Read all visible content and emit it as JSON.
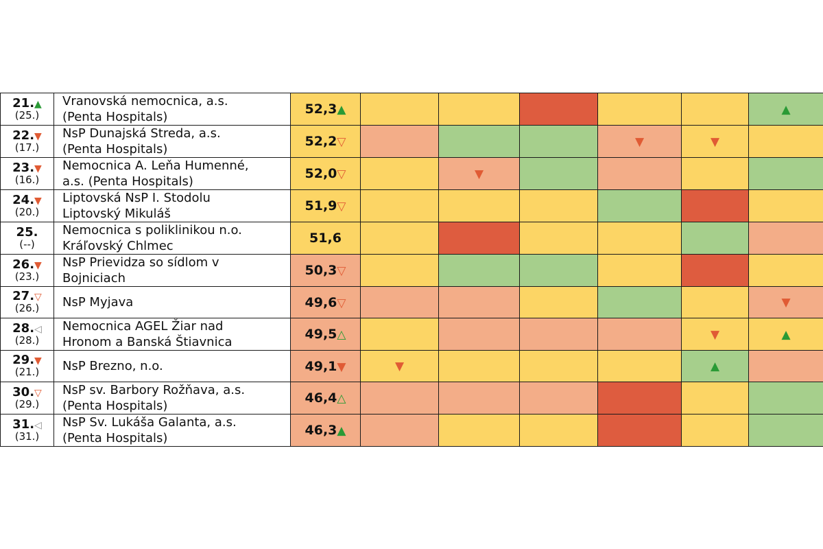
{
  "colors": {
    "yellow": "#fcd565",
    "salmon": "#f3ad88",
    "green": "#a6cf8c",
    "red": "#de5c3f",
    "white": "#ffffff",
    "up_icon": "#2a9a35",
    "down_icon": "#e05b34",
    "side_icon": "#8a8a8a"
  },
  "icons": {
    "up": "▲",
    "down": "▼",
    "up_outline": "△",
    "down_outline": "▽",
    "side": "◁"
  },
  "rows": [
    {
      "rank": "21.",
      "rank_icon": "up",
      "prev": "(25.)",
      "name1": "Vranovská nemocnica, a.s.",
      "name2": "(Penta Hospitals)",
      "score": "52,3",
      "score_icon": "up",
      "score_bg": "yellow",
      "cells": [
        {
          "bg": "yellow",
          "icon": null
        },
        {
          "bg": "yellow",
          "icon": null
        },
        {
          "bg": "red",
          "icon": null
        },
        {
          "bg": "yellow",
          "icon": null
        },
        {
          "bg": "yellow",
          "icon": null
        },
        {
          "bg": "green",
          "icon": "up"
        }
      ]
    },
    {
      "rank": "22.",
      "rank_icon": "down",
      "prev": "(17.)",
      "name1": "NsP Dunajská Streda, a.s.",
      "name2": "(Penta Hospitals)",
      "score": "52,2",
      "score_icon": "down_outline",
      "score_bg": "yellow",
      "cells": [
        {
          "bg": "salmon",
          "icon": null
        },
        {
          "bg": "green",
          "icon": null
        },
        {
          "bg": "green",
          "icon": null
        },
        {
          "bg": "salmon",
          "icon": "down"
        },
        {
          "bg": "yellow",
          "icon": "down"
        },
        {
          "bg": "yellow",
          "icon": null
        }
      ]
    },
    {
      "rank": "23.",
      "rank_icon": "down",
      "prev": "(16.)",
      "name1": "Nemocnica A. Leňa Humenné,",
      "name2": "a.s. (Penta Hospitals)",
      "score": "52,0",
      "score_icon": "down_outline",
      "score_bg": "yellow",
      "cells": [
        {
          "bg": "yellow",
          "icon": null
        },
        {
          "bg": "salmon",
          "icon": "down"
        },
        {
          "bg": "green",
          "icon": null
        },
        {
          "bg": "salmon",
          "icon": null
        },
        {
          "bg": "yellow",
          "icon": null
        },
        {
          "bg": "green",
          "icon": null
        }
      ]
    },
    {
      "rank": "24.",
      "rank_icon": "down",
      "prev": "(20.)",
      "name1": "Liptovská NsP I. Stodolu",
      "name2": "Liptovský Mikuláš",
      "score": "51,9",
      "score_icon": "down_outline",
      "score_bg": "yellow",
      "cells": [
        {
          "bg": "yellow",
          "icon": null
        },
        {
          "bg": "yellow",
          "icon": null
        },
        {
          "bg": "yellow",
          "icon": null
        },
        {
          "bg": "green",
          "icon": null
        },
        {
          "bg": "red",
          "icon": null
        },
        {
          "bg": "yellow",
          "icon": null
        }
      ]
    },
    {
      "rank": "25.",
      "rank_icon": null,
      "prev": "(--)",
      "name1": "Nemocnica s poliklinikou n.o.",
      "name2": "Kráľovský Chlmec",
      "score": "51,6",
      "score_icon": null,
      "score_bg": "yellow",
      "cells": [
        {
          "bg": "yellow",
          "icon": null
        },
        {
          "bg": "red",
          "icon": null
        },
        {
          "bg": "yellow",
          "icon": null
        },
        {
          "bg": "yellow",
          "icon": null
        },
        {
          "bg": "green",
          "icon": null
        },
        {
          "bg": "salmon",
          "icon": null
        }
      ]
    },
    {
      "rank": "26.",
      "rank_icon": "down",
      "prev": "(23.)",
      "name1": "NsP Prievidza so sídlom v",
      "name2": "Bojniciach",
      "score": "50,3",
      "score_icon": "down_outline",
      "score_bg": "salmon",
      "cells": [
        {
          "bg": "yellow",
          "icon": null
        },
        {
          "bg": "green",
          "icon": null
        },
        {
          "bg": "green",
          "icon": null
        },
        {
          "bg": "yellow",
          "icon": null
        },
        {
          "bg": "red",
          "icon": null
        },
        {
          "bg": "yellow",
          "icon": null
        }
      ]
    },
    {
      "rank": "27.",
      "rank_icon": "down_outline",
      "prev": "(26.)",
      "name1": "NsP Myjava",
      "name2": "",
      "score": "49,6",
      "score_icon": "down_outline",
      "score_bg": "salmon",
      "cells": [
        {
          "bg": "salmon",
          "icon": null
        },
        {
          "bg": "salmon",
          "icon": null
        },
        {
          "bg": "yellow",
          "icon": null
        },
        {
          "bg": "green",
          "icon": null
        },
        {
          "bg": "yellow",
          "icon": null
        },
        {
          "bg": "salmon",
          "icon": "down"
        }
      ]
    },
    {
      "rank": "28.",
      "rank_icon": "side",
      "prev": "(28.)",
      "name1": "Nemocnica AGEL Žiar nad",
      "name2": "Hronom a Banská Štiavnica",
      "score": "49,5",
      "score_icon": "up_outline",
      "score_bg": "salmon",
      "cells": [
        {
          "bg": "yellow",
          "icon": null
        },
        {
          "bg": "salmon",
          "icon": null
        },
        {
          "bg": "salmon",
          "icon": null
        },
        {
          "bg": "salmon",
          "icon": null
        },
        {
          "bg": "yellow",
          "icon": "down"
        },
        {
          "bg": "yellow",
          "icon": "up"
        }
      ]
    },
    {
      "rank": "29.",
      "rank_icon": "down",
      "prev": "(21.)",
      "name1": "NsP Brezno, n.o.",
      "name2": "",
      "score": "49,1",
      "score_icon": "down",
      "score_bg": "salmon",
      "cells": [
        {
          "bg": "yellow",
          "icon": "down"
        },
        {
          "bg": "yellow",
          "icon": null
        },
        {
          "bg": "yellow",
          "icon": null
        },
        {
          "bg": "yellow",
          "icon": null
        },
        {
          "bg": "green",
          "icon": "up"
        },
        {
          "bg": "salmon",
          "icon": null
        }
      ]
    },
    {
      "rank": "30.",
      "rank_icon": "down_outline",
      "prev": "(29.)",
      "name1": "NsP sv. Barbory Rožňava, a.s.",
      "name2": "(Penta Hospitals)",
      "score": "46,4",
      "score_icon": "up_outline",
      "score_bg": "salmon",
      "cells": [
        {
          "bg": "salmon",
          "icon": null
        },
        {
          "bg": "salmon",
          "icon": null
        },
        {
          "bg": "salmon",
          "icon": null
        },
        {
          "bg": "red",
          "icon": null
        },
        {
          "bg": "yellow",
          "icon": null
        },
        {
          "bg": "green",
          "icon": null
        }
      ]
    },
    {
      "rank": "31.",
      "rank_icon": "side",
      "prev": "(31.)",
      "name1": "NsP Sv. Lukáša Galanta, a.s.",
      "name2": "(Penta Hospitals)",
      "score": "46,3",
      "score_icon": "up",
      "score_bg": "salmon",
      "cells": [
        {
          "bg": "salmon",
          "icon": null
        },
        {
          "bg": "yellow",
          "icon": null
        },
        {
          "bg": "yellow",
          "icon": null
        },
        {
          "bg": "red",
          "icon": null
        },
        {
          "bg": "yellow",
          "icon": null
        },
        {
          "bg": "green",
          "icon": null
        }
      ]
    }
  ]
}
